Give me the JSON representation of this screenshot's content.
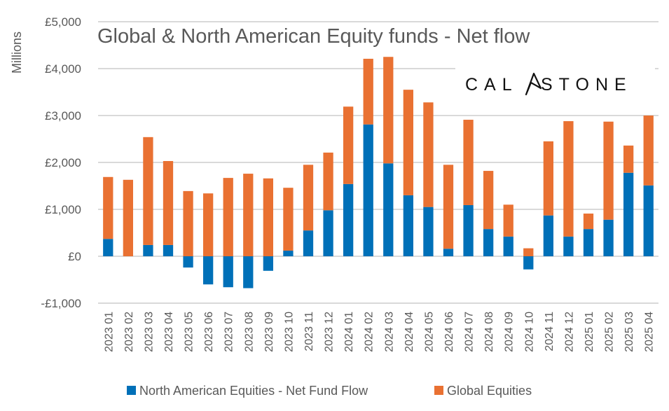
{
  "chart_data": {
    "type": "bar",
    "stacked": true,
    "title": "Global & North American Equity funds - Net flow",
    "xlabel": "",
    "ylabel": "Millions",
    "ylim": [
      -1000,
      5000
    ],
    "ytick_values": [
      -1000,
      0,
      1000,
      2000,
      3000,
      4000,
      5000
    ],
    "ytick_labels": [
      "-£1,000",
      "£0",
      "£1,000",
      "£2,000",
      "£3,000",
      "£4,000",
      "£5,000"
    ],
    "grid": true,
    "legend_position": "bottom",
    "categories": [
      "2023 01",
      "2023 02",
      "2023 03",
      "2023 04",
      "2023 05",
      "2023 06",
      "2023 07",
      "2023 08",
      "2023 09",
      "2023 10",
      "2023 11",
      "2023 12",
      "2024 01",
      "2024 02",
      "2024 03",
      "2024 04",
      "2024 05",
      "2024 06",
      "2024 07",
      "2024 08",
      "2024 09",
      "2024 10",
      "2024 11",
      "2024 12",
      "2025 01",
      "2025 02",
      "2025 03",
      "2025 04"
    ],
    "series": [
      {
        "name": "North American Equities - Net Fund Flow",
        "color": "#0070B8",
        "values": [
          370,
          0,
          240,
          240,
          -240,
          -600,
          -660,
          -680,
          -310,
          120,
          550,
          980,
          1540,
          2810,
          1980,
          1300,
          1050,
          160,
          1090,
          580,
          420,
          -280,
          870,
          420,
          580,
          780,
          1780,
          1510
        ]
      },
      {
        "name": "Global Equities",
        "color": "#E97132",
        "values": [
          1320,
          1630,
          2300,
          1790,
          1390,
          1340,
          1670,
          1760,
          1660,
          1340,
          1400,
          1230,
          1650,
          1400,
          2270,
          2250,
          2230,
          1790,
          1820,
          1240,
          680,
          170,
          1580,
          2460,
          330,
          2090,
          580,
          1490
        ]
      }
    ],
    "annotations": [
      "CAL/\\STONE logo (top-right)"
    ]
  },
  "logo": {
    "left_text": "CAL",
    "right_text": "STONE",
    "icon": "stylised-A-arrow-icon"
  }
}
